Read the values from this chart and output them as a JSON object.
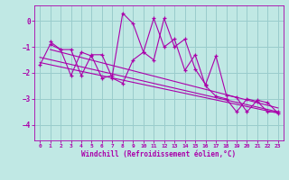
{
  "xlabel": "Windchill (Refroidissement éolien,°C)",
  "bg_color": "#c0e8e4",
  "line_color": "#aa00aa",
  "grid_color": "#99cccc",
  "xlim": [
    -0.5,
    23.5
  ],
  "ylim": [
    -4.6,
    0.6
  ],
  "yticks": [
    0,
    -1,
    -2,
    -3,
    -4
  ],
  "xticks": [
    0,
    1,
    2,
    3,
    4,
    5,
    6,
    7,
    8,
    9,
    10,
    11,
    12,
    13,
    14,
    15,
    16,
    17,
    18,
    19,
    20,
    21,
    22,
    23
  ],
  "series1_x": [
    1,
    2,
    3,
    4,
    5,
    6,
    7,
    8,
    9,
    10,
    11,
    12,
    13,
    14,
    15,
    16,
    17,
    18,
    19,
    20,
    21,
    22,
    23
  ],
  "series1_y": [
    -0.8,
    -1.1,
    -2.1,
    -1.2,
    -1.35,
    -2.2,
    -2.1,
    0.3,
    -0.1,
    -1.2,
    0.1,
    -1.0,
    -0.7,
    -1.9,
    -1.3,
    -2.5,
    -2.9,
    -3.0,
    -3.5,
    -3.0,
    -3.1,
    -3.5,
    -3.5
  ],
  "series2_x": [
    0,
    1,
    2,
    3,
    4,
    5,
    6,
    7,
    8,
    9,
    10,
    11,
    12,
    13,
    14,
    15,
    16,
    17,
    18,
    19,
    20,
    21,
    22,
    23
  ],
  "series2_y": [
    -1.7,
    -0.9,
    -1.1,
    -1.1,
    -2.1,
    -1.3,
    -1.3,
    -2.2,
    -2.4,
    -1.5,
    -1.2,
    -1.5,
    0.1,
    -1.0,
    -0.7,
    -1.85,
    -2.45,
    -1.35,
    -2.85,
    -2.95,
    -3.5,
    -3.05,
    -3.15,
    -3.55
  ],
  "trend1_x": [
    1,
    23
  ],
  "trend1_y": [
    -1.1,
    -3.35
  ],
  "trend2_x": [
    0,
    23
  ],
  "trend2_y": [
    -1.4,
    -3.5
  ],
  "trend3_x": [
    0,
    23
  ],
  "trend3_y": [
    -1.6,
    -3.55
  ]
}
